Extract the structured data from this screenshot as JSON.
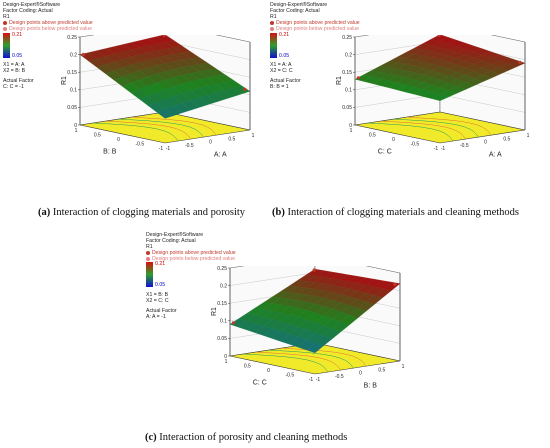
{
  "chart_data": [
    {
      "type": "surface3d",
      "software": "Design-Expert®Software",
      "factor_coding": "Factor Coding: Actual",
      "response": "R1",
      "legend": [
        "Design points above predicted value",
        "Design points below predicted value"
      ],
      "color_range": {
        "high": "0.21",
        "low": "0.05"
      },
      "x1": "X1 = A: A",
      "x2": "X2 = B: B",
      "actual_factor_title": "Actual Factor",
      "actual_factor": "C: C = -1",
      "zlabel": "R1",
      "z_ticks": [
        "0.25",
        "0.2",
        "0.15",
        "0.1",
        "0.05",
        "0"
      ],
      "axis1_label": "B: B",
      "axis1_ticks": [
        "1",
        "0.5",
        "0",
        "-0.5",
        "-1"
      ],
      "axis2_label": "A: A",
      "axis2_ticks": [
        "-1",
        "-0.5",
        "0",
        "0.5",
        "1"
      ],
      "surface_corners": {
        "back": 0.22,
        "left": 0.2,
        "right": 0.11,
        "front": 0.07
      },
      "caption_tag": "(a)",
      "caption": " Interaction of clogging materials and porosity"
    },
    {
      "type": "surface3d",
      "software": "Design-Expert®Software",
      "factor_coding": "Factor Coding: Actual",
      "response": "R1",
      "legend": [
        "Design points above predicted value",
        "Design points below predicted value"
      ],
      "color_range": {
        "high": "0.21",
        "low": "0.05"
      },
      "x1": "X1 = A: A",
      "x2": "X2 = C: C",
      "actual_factor_title": "Actual Factor",
      "actual_factor": "B: B = 1",
      "zlabel": "R1",
      "z_ticks": [
        "0.25",
        "0.2",
        "0.15",
        "0.1",
        "0.05",
        "0"
      ],
      "axis1_label": "C: C",
      "axis1_ticks": [
        "1",
        "0.5",
        "0",
        "-0.5",
        "-1"
      ],
      "axis2_label": "A: A",
      "axis2_ticks": [
        "-1",
        "-0.5",
        "0",
        "0.5",
        "1"
      ],
      "surface_corners": {
        "back": 0.22,
        "left": 0.13,
        "right": 0.19,
        "front": 0.12
      },
      "caption_tag": "(b)",
      "caption": " Interaction of clogging materials and cleaning methods"
    },
    {
      "type": "surface3d",
      "software": "Design-Expert®Software",
      "factor_coding": "Factor Coding: Actual",
      "response": "R1",
      "legend": [
        "Design points above predicted value",
        "Design points below predicted value"
      ],
      "color_range": {
        "high": "0.21",
        "low": "0.05"
      },
      "x1": "X1 = B: B",
      "x2": "X2 = C: C",
      "actual_factor_title": "Actual Factor",
      "actual_factor": "A: A = -1",
      "zlabel": "R1",
      "z_ticks": [
        "0.25",
        "0.2",
        "0.15",
        "0.1",
        "0.05",
        "0"
      ],
      "axis1_label": "C: C",
      "axis1_ticks": [
        "1",
        "0.5",
        "0",
        "-0.5",
        "-1"
      ],
      "axis2_label": "B: B",
      "axis2_ticks": [
        "-1",
        "-0.5",
        "0",
        "0.5",
        "1"
      ],
      "surface_corners": {
        "back": 0.21,
        "left": 0.09,
        "right": 0.22,
        "front": 0.06
      },
      "caption_tag": "(c)",
      "caption": " Interaction of porosity and cleaning methods"
    }
  ]
}
